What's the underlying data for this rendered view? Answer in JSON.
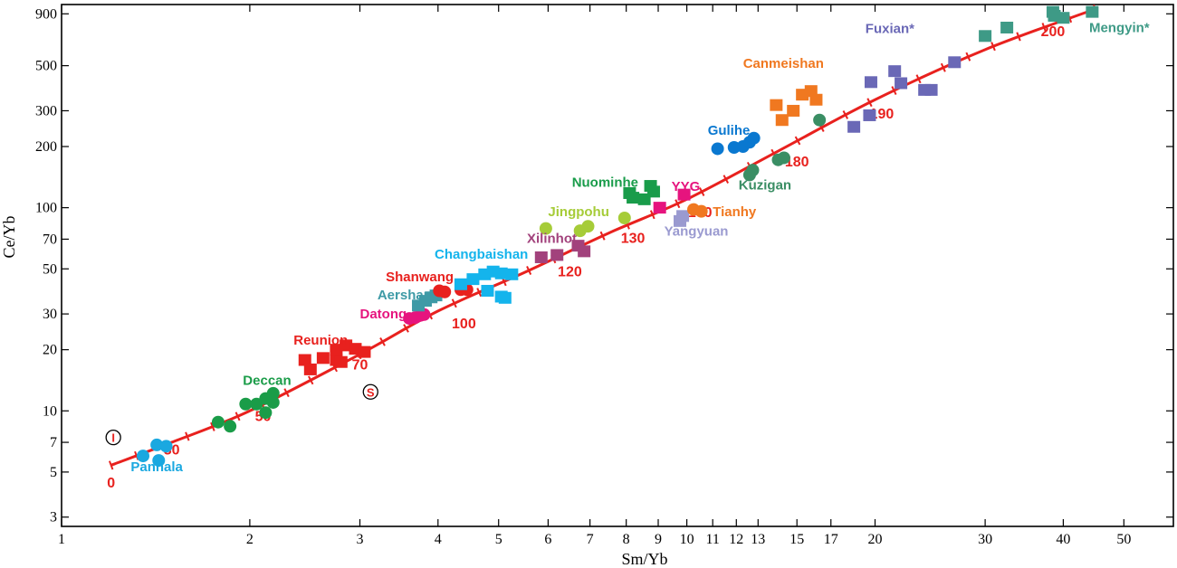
{
  "chart_data": {
    "type": "scatter",
    "xlabel": "Sm/Yb",
    "ylabel": "Ce/Yb",
    "xscale": "log",
    "yscale": "log",
    "xlim": [
      1,
      60
    ],
    "ylim": [
      2.7,
      1000
    ],
    "grid": false,
    "x_ticks": [
      1,
      2,
      3,
      4,
      5,
      6,
      7,
      8,
      9,
      10,
      11,
      12,
      13,
      15,
      17,
      20,
      30,
      40,
      50
    ],
    "x_tick_labels": [
      "1",
      "2",
      "3",
      "4",
      "5",
      "6",
      "7",
      "8",
      "9",
      "10",
      "11",
      "12",
      "13",
      "15",
      "17",
      "20",
      "30",
      "40",
      "50"
    ],
    "y_ticks": [
      3,
      5,
      7,
      10,
      20,
      30,
      50,
      70,
      100,
      200,
      300,
      500,
      900
    ],
    "y_tick_labels": [
      "3",
      "5",
      "7",
      "10",
      "20",
      "30",
      "50",
      "70",
      "100",
      "200",
      "300",
      "500",
      "900"
    ],
    "curve": {
      "color": "#e8211e",
      "points": [
        [
          1.2,
          5.4
        ],
        [
          1.5,
          7.0
        ],
        [
          2.0,
          10.0
        ],
        [
          3.0,
          19.0
        ],
        [
          4.0,
          31.0
        ],
        [
          5.5,
          48.0
        ],
        [
          7.5,
          75.0
        ],
        [
          10.0,
          110.0
        ],
        [
          14.0,
          190.0
        ],
        [
          20.0,
          340.0
        ],
        [
          30.0,
          600.0
        ],
        [
          45.0,
          950.0
        ]
      ],
      "labels": [
        {
          "text": "0",
          "x": 1.2,
          "y": 4.2
        },
        {
          "text": "30",
          "x": 1.5,
          "y": 6.1
        },
        {
          "text": "50",
          "x": 2.1,
          "y": 8.9
        },
        {
          "text": "70",
          "x": 3.0,
          "y": 16.0
        },
        {
          "text": "100",
          "x": 4.4,
          "y": 25.5
        },
        {
          "text": "120",
          "x": 6.5,
          "y": 46.0
        },
        {
          "text": "130",
          "x": 8.2,
          "y": 67.0
        },
        {
          "text": "150",
          "x": 10.5,
          "y": 90.0
        },
        {
          "text": "180",
          "x": 15.0,
          "y": 160.0
        },
        {
          "text": "190",
          "x": 20.5,
          "y": 275.0
        },
        {
          "text": "200",
          "x": 38.5,
          "y": 700.0
        }
      ]
    },
    "reference_points": [
      {
        "text": "I",
        "x": 1.21,
        "y": 7.4
      },
      {
        "text": "S",
        "x": 3.12,
        "y": 12.4
      }
    ],
    "series": [
      {
        "name": "Panhala",
        "color": "#1aa8e0",
        "marker": "circle",
        "label_pos": [
          1.29,
          5.05
        ],
        "points": [
          [
            1.35,
            6.0
          ],
          [
            1.42,
            6.8
          ],
          [
            1.47,
            6.7
          ],
          [
            1.43,
            5.7
          ]
        ]
      },
      {
        "name": "Deccan",
        "color": "#1a9c48",
        "marker": "circle",
        "label_pos": [
          1.95,
          13.4
        ],
        "points": [
          [
            1.78,
            8.8
          ],
          [
            1.86,
            8.4
          ],
          [
            1.97,
            10.8
          ],
          [
            2.05,
            10.8
          ],
          [
            2.12,
            11.5
          ],
          [
            2.18,
            12.2
          ],
          [
            2.18,
            11.0
          ],
          [
            2.12,
            9.8
          ]
        ]
      },
      {
        "name": "Reunion",
        "color": "#e8211e",
        "marker": "square",
        "label_pos": [
          2.35,
          21.2
        ],
        "points": [
          [
            2.45,
            17.8
          ],
          [
            2.5,
            16.0
          ],
          [
            2.62,
            18.2
          ],
          [
            2.75,
            17.8
          ],
          [
            2.8,
            17.4
          ],
          [
            2.75,
            20.0
          ],
          [
            2.85,
            21.0
          ],
          [
            2.95,
            20.2
          ],
          [
            3.05,
            19.5
          ]
        ]
      },
      {
        "name": "Datong",
        "color": "#e6147e",
        "marker": "circle",
        "label_pos": [
          3.0,
          28.6
        ],
        "points": [
          [
            3.6,
            28.5
          ],
          [
            3.68,
            28.8
          ],
          [
            3.75,
            29.5
          ],
          [
            3.8,
            29.8
          ]
        ]
      },
      {
        "name": "Aershan",
        "color": "#3e9aa6",
        "marker": "square",
        "label_pos": [
          3.2,
          35.3
        ],
        "points": [
          [
            3.72,
            33.0
          ],
          [
            3.82,
            34.8
          ],
          [
            3.9,
            36.2
          ],
          [
            3.97,
            37.0
          ]
        ]
      },
      {
        "name": "Shanwang",
        "color": "#e8211e",
        "marker": "circle",
        "label_pos": [
          3.3,
          43.5
        ],
        "points": [
          [
            4.02,
            39.0
          ],
          [
            4.1,
            38.5
          ],
          [
            4.35,
            39.5
          ],
          [
            4.45,
            39.5
          ]
        ]
      },
      {
        "name": "Changbaishan",
        "color": "#14b4ec",
        "marker": "square",
        "label_pos": [
          3.95,
          56.0
        ],
        "points": [
          [
            4.35,
            42.0
          ],
          [
            4.55,
            44.5
          ],
          [
            4.75,
            47.0
          ],
          [
            4.9,
            48.5
          ],
          [
            5.05,
            47.5
          ],
          [
            5.25,
            47.0
          ],
          [
            4.8,
            39.0
          ],
          [
            5.05,
            36.5
          ],
          [
            5.12,
            36.0
          ]
        ]
      },
      {
        "name": "Xilinhot",
        "color": "#a2427c",
        "marker": "square",
        "label_pos": [
          5.55,
          67.0
        ],
        "points": [
          [
            5.85,
            57.0
          ],
          [
            6.2,
            58.5
          ],
          [
            6.7,
            65.0
          ],
          [
            6.85,
            61.0
          ]
        ]
      },
      {
        "name": "Jingpohu",
        "color": "#a6cc38",
        "marker": "circle",
        "label_pos": [
          6.0,
          91.0
        ],
        "points": [
          [
            5.95,
            79.0
          ],
          [
            6.75,
            77.0
          ],
          [
            6.95,
            81.0
          ],
          [
            7.95,
            89.0
          ]
        ]
      },
      {
        "name": "Nuominhe",
        "color": "#199c4a",
        "marker": "square",
        "label_pos": [
          6.55,
          127.0
        ],
        "points": [
          [
            8.1,
            118.0
          ],
          [
            8.2,
            112.0
          ],
          [
            8.55,
            110.0
          ],
          [
            8.75,
            128.0
          ],
          [
            8.85,
            120.0
          ]
        ]
      },
      {
        "name": "YYG",
        "color": "#e6147e",
        "marker": "square",
        "label_pos": [
          9.45,
          121.0
        ],
        "points": [
          [
            9.05,
            100.0
          ],
          [
            9.9,
            116.0
          ]
        ]
      },
      {
        "name": "Yangyuan",
        "color": "#9a9ad0",
        "marker": "square",
        "label_pos": [
          9.2,
          73.0
        ],
        "points": [
          [
            9.75,
            86.0
          ],
          [
            9.85,
            91.0
          ]
        ]
      },
      {
        "name": "Tianhy",
        "color": "#f07820",
        "marker": "circle",
        "label_pos": [
          11.0,
          91.0
        ],
        "points": [
          [
            10.25,
            98.0
          ],
          [
            10.55,
            96.0
          ]
        ]
      },
      {
        "name": "Gulihe",
        "color": "#0a78d0",
        "marker": "circle",
        "label_pos": [
          10.8,
          229.0
        ],
        "points": [
          [
            11.2,
            195.0
          ],
          [
            11.9,
            198.0
          ],
          [
            12.3,
            200.0
          ],
          [
            12.6,
            210.0
          ],
          [
            12.8,
            220.0
          ]
        ]
      },
      {
        "name": "Kuzigan",
        "color": "#3a8e64",
        "marker": "circle",
        "label_pos": [
          12.1,
          123.0
        ],
        "points": [
          [
            12.6,
            145.0
          ],
          [
            12.75,
            153.0
          ],
          [
            14.0,
            172.0
          ],
          [
            14.3,
            176.0
          ],
          [
            16.3,
            270.0
          ]
        ]
      },
      {
        "name": "Canmeishan",
        "color": "#f07820",
        "marker": "square",
        "label_pos": [
          12.3,
          487.0
        ],
        "points": [
          [
            13.9,
            320.0
          ],
          [
            14.2,
            270.0
          ],
          [
            14.8,
            300.0
          ],
          [
            15.3,
            360.0
          ],
          [
            15.8,
            375.0
          ],
          [
            16.1,
            340.0
          ]
        ]
      },
      {
        "name": "Fuxian*",
        "color": "#6a68b6",
        "marker": "square",
        "label_pos": [
          19.3,
          725.0
        ],
        "points": [
          [
            18.5,
            250.0
          ],
          [
            19.6,
            285.0
          ],
          [
            19.7,
            415.0
          ],
          [
            21.5,
            470.0
          ],
          [
            22.0,
            410.0
          ],
          [
            24.0,
            380.0
          ],
          [
            24.6,
            380.0
          ],
          [
            26.8,
            520.0
          ]
        ]
      },
      {
        "name": "Mengyin*",
        "color": "#3e9a86",
        "marker": "square",
        "label_pos": [
          44.0,
          730.0
        ],
        "points": [
          [
            30.0,
            700.0
          ],
          [
            32.5,
            770.0
          ],
          [
            38.5,
            920.0
          ],
          [
            38.7,
            880.0
          ],
          [
            40.0,
            860.0
          ],
          [
            44.5,
            920.0
          ]
        ]
      }
    ]
  }
}
